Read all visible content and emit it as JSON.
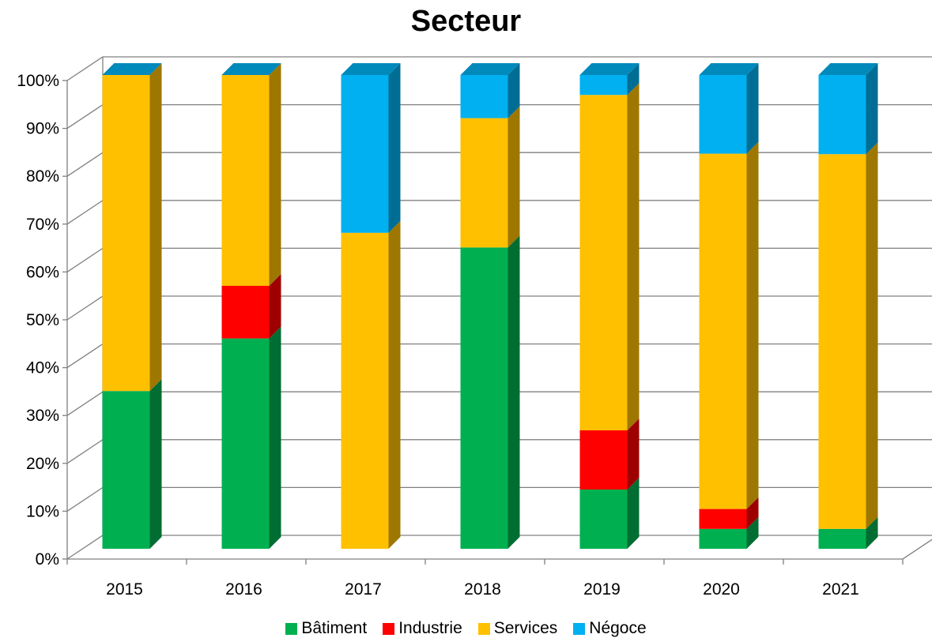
{
  "chart_data": {
    "type": "bar",
    "stacked": true,
    "percent": true,
    "three_d": true,
    "title": "Secteur",
    "xlabel": "",
    "ylabel": "",
    "categories": [
      "2015",
      "2016",
      "2017",
      "2018",
      "2019",
      "2020",
      "2021"
    ],
    "ylim": [
      0,
      100
    ],
    "yticks": [
      "0%",
      "10%",
      "20%",
      "30%",
      "40%",
      "50%",
      "60%",
      "70%",
      "80%",
      "90%",
      "100%"
    ],
    "grid": true,
    "legend_position": "bottom",
    "series": [
      {
        "name": "Bâtiment",
        "color": "#00B050",
        "values": [
          33.3,
          44.4,
          0,
          63.6,
          12.5,
          4.2,
          4.2
        ]
      },
      {
        "name": "Industrie",
        "color": "#FF0000",
        "values": [
          0,
          11.1,
          0,
          0,
          12.5,
          4.2,
          0
        ]
      },
      {
        "name": "Services",
        "color": "#FFC000",
        "values": [
          66.7,
          44.5,
          66.7,
          27.3,
          70.8,
          75.0,
          79.1
        ]
      },
      {
        "name": "Négoce",
        "color": "#00B0F0",
        "values": [
          0,
          0,
          33.3,
          9.1,
          4.2,
          16.6,
          16.7
        ]
      }
    ]
  }
}
